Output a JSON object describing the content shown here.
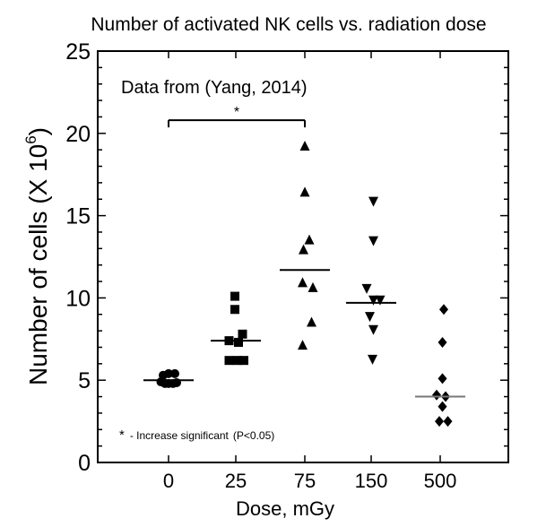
{
  "chart_data": {
    "type": "scatter",
    "title": "Number of activated NK cells vs. radiation dose",
    "xlabel": "Dose, mGy",
    "ylabel_main": "Number of cells (X 10",
    "ylabel_exp": "6",
    "ylabel_close": ")",
    "ylim": [
      0,
      25
    ],
    "yticks": [
      0,
      5,
      10,
      15,
      20,
      25
    ],
    "categories": [
      "0",
      "25",
      "75",
      "150",
      "500"
    ],
    "groups": [
      {
        "category": "0",
        "marker": "circle",
        "median": 5.0,
        "points": [
          [
            -0.17,
            4.9
          ],
          [
            -0.08,
            4.8
          ],
          [
            0.0,
            4.8
          ],
          [
            0.1,
            4.8
          ],
          [
            0.18,
            4.85
          ],
          [
            -0.12,
            5.3
          ],
          [
            0.0,
            5.4
          ],
          [
            0.14,
            5.4
          ]
        ]
      },
      {
        "category": "25",
        "marker": "square",
        "median": 7.4,
        "points": [
          [
            -0.15,
            6.2
          ],
          [
            0.03,
            6.2
          ],
          [
            0.18,
            6.2
          ],
          [
            -0.15,
            7.4
          ],
          [
            0.06,
            7.3
          ],
          [
            0.15,
            7.8
          ],
          [
            -0.02,
            9.3
          ],
          [
            -0.02,
            10.1
          ]
        ]
      },
      {
        "category": "75",
        "marker": "triangle",
        "median": 11.7,
        "points": [
          [
            0.0,
            19.2
          ],
          [
            0.0,
            16.4
          ],
          [
            0.1,
            13.5
          ],
          [
            -0.03,
            12.9
          ],
          [
            -0.05,
            10.9
          ],
          [
            0.18,
            10.6
          ],
          [
            0.15,
            8.5
          ],
          [
            -0.05,
            7.1
          ]
        ]
      },
      {
        "category": "150",
        "marker": "inverted-triangle",
        "median": 9.7,
        "points": [
          [
            0.05,
            15.9
          ],
          [
            0.05,
            13.5
          ],
          [
            -0.1,
            10.6
          ],
          [
            0.05,
            9.9
          ],
          [
            0.2,
            9.9
          ],
          [
            -0.03,
            8.9
          ],
          [
            0.05,
            8.1
          ],
          [
            0.03,
            6.3
          ]
        ]
      },
      {
        "category": "500",
        "marker": "diamond",
        "median": 4.0,
        "points": [
          [
            0.08,
            9.3
          ],
          [
            0.05,
            7.3
          ],
          [
            0.05,
            5.1
          ],
          [
            -0.08,
            4.1
          ],
          [
            0.12,
            4.0
          ],
          [
            0.05,
            3.4
          ],
          [
            -0.02,
            2.5
          ],
          [
            0.17,
            2.5
          ]
        ]
      }
    ],
    "significance": {
      "from": "0",
      "to": "75",
      "y": 20.8,
      "label": "*"
    },
    "annotation": "Data from (Yang, 2014)",
    "footnote_star": "*",
    "footnote_text": "- Increase significant",
    "footnote_p": "(P<0.05)"
  }
}
